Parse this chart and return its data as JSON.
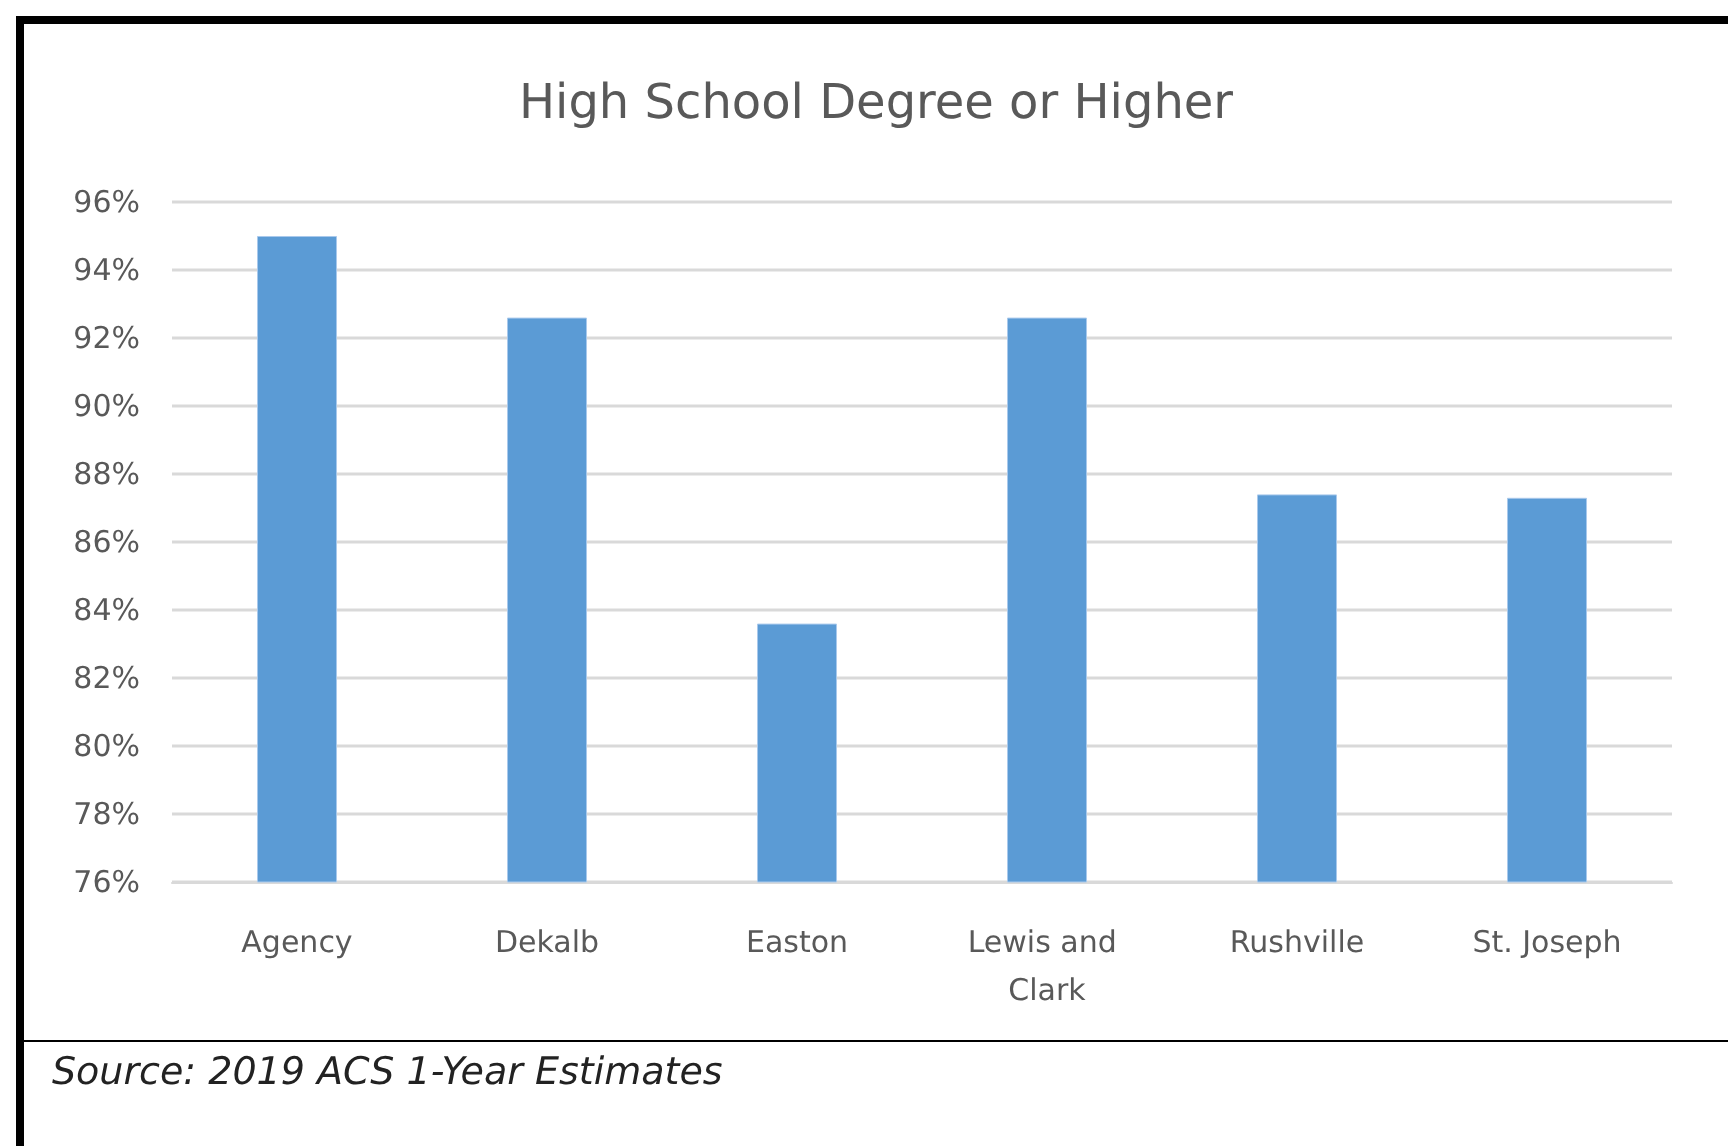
{
  "chart_data": {
    "type": "bar",
    "title": "High School Degree or Higher",
    "categories": [
      "Agency",
      "Dekalb",
      "Easton",
      "Lewis and Clark",
      "Rushville",
      "St. Joseph"
    ],
    "values": [
      95.0,
      92.6,
      83.6,
      92.6,
      87.4,
      87.3
    ],
    "color": "#5b9bd5",
    "ylim": [
      76,
      96
    ],
    "yticks": [
      {
        "value": 76,
        "label": "76%"
      },
      {
        "value": 78,
        "label": "78%"
      },
      {
        "value": 80,
        "label": "80%"
      },
      {
        "value": 82,
        "label": "82%"
      },
      {
        "value": 84,
        "label": "84%"
      },
      {
        "value": 86,
        "label": "86%"
      },
      {
        "value": 88,
        "label": "88%"
      },
      {
        "value": 90,
        "label": "90%"
      },
      {
        "value": 92,
        "label": "92%"
      },
      {
        "value": 94,
        "label": "94%"
      },
      {
        "value": 96,
        "label": "96%"
      }
    ],
    "grid": true,
    "annotations": [
      "Source: 2019 ACS 1-Year Estimates"
    ]
  }
}
